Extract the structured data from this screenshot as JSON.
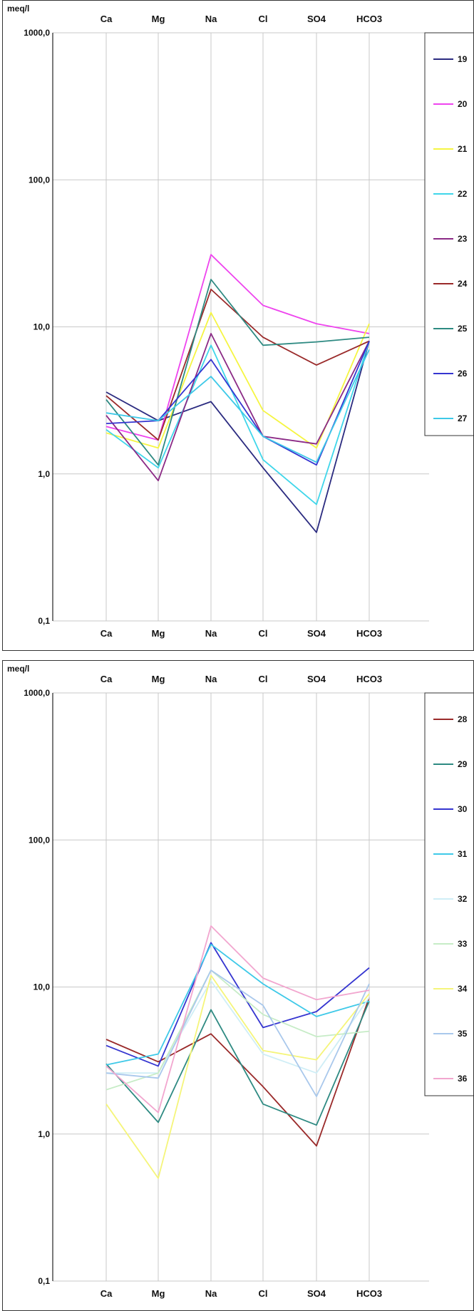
{
  "chart_data": [
    {
      "type": "line",
      "ylabel": "meq/l",
      "yscale": "log",
      "ylim": [
        0.1,
        1000
      ],
      "yticks": [
        "0,1",
        "1,0",
        "10,0",
        "100,0",
        "1000,0"
      ],
      "categories": [
        "Ca",
        "Mg",
        "Na",
        "Cl",
        "SO4",
        "HCO3"
      ],
      "grid": true,
      "legend_position": "right",
      "series": [
        {
          "name": "19",
          "color": "#2b2b80",
          "values": [
            3.6,
            2.3,
            3.1,
            1.1,
            0.4,
            8.0
          ]
        },
        {
          "name": "20",
          "color": "#ee44ee",
          "values": [
            2.1,
            1.7,
            31.0,
            14.0,
            10.5,
            9.0
          ]
        },
        {
          "name": "21",
          "color": "#f5f542",
          "values": [
            1.9,
            1.5,
            12.5,
            2.7,
            1.5,
            10.5
          ]
        },
        {
          "name": "22",
          "color": "#3fd6ea",
          "values": [
            2.0,
            1.1,
            7.5,
            1.25,
            0.62,
            8.0
          ]
        },
        {
          "name": "23",
          "color": "#8b2a86",
          "values": [
            2.5,
            0.9,
            9.0,
            1.8,
            1.6,
            8.0
          ]
        },
        {
          "name": "24",
          "color": "#9a2a2a",
          "values": [
            3.4,
            1.7,
            18.0,
            8.5,
            5.5,
            8.0
          ]
        },
        {
          "name": "25",
          "color": "#2e8a82",
          "values": [
            3.2,
            1.15,
            21.0,
            7.5,
            7.9,
            8.5
          ]
        },
        {
          "name": "26",
          "color": "#3535d0",
          "values": [
            2.2,
            2.3,
            6.0,
            1.8,
            1.15,
            8.0
          ]
        },
        {
          "name": "27",
          "color": "#3ec9e8",
          "values": [
            2.6,
            2.3,
            4.6,
            1.8,
            1.2,
            7.0
          ]
        }
      ]
    },
    {
      "type": "line",
      "ylabel": "meq/l",
      "yscale": "log",
      "ylim": [
        0.1,
        1000
      ],
      "yticks": [
        "0,1",
        "1,0",
        "10,0",
        "100,0",
        "1000,0"
      ],
      "categories": [
        "Ca",
        "Mg",
        "Na",
        "Cl",
        "SO4",
        "HCO3"
      ],
      "grid": true,
      "legend_position": "right",
      "series": [
        {
          "name": "28",
          "color": "#9a2a2a",
          "values": [
            4.4,
            3.1,
            4.8,
            2.1,
            0.83,
            8.5
          ]
        },
        {
          "name": "29",
          "color": "#2e8a82",
          "values": [
            3.0,
            1.2,
            7.0,
            1.6,
            1.15,
            8.0
          ]
        },
        {
          "name": "30",
          "color": "#3535d0",
          "values": [
            4.0,
            2.9,
            20.0,
            5.3,
            6.8,
            13.5
          ]
        },
        {
          "name": "31",
          "color": "#3ec9e8",
          "values": [
            2.95,
            3.5,
            19.5,
            10.5,
            6.3,
            8.0
          ]
        },
        {
          "name": "32",
          "color": "#cfeef6",
          "values": [
            2.6,
            2.6,
            11.0,
            3.5,
            2.6,
            8.5
          ]
        },
        {
          "name": "33",
          "color": "#c6ecc6",
          "values": [
            2.0,
            2.6,
            13.0,
            6.5,
            4.6,
            5.0
          ]
        },
        {
          "name": "34",
          "color": "#f5f57a",
          "values": [
            1.6,
            0.5,
            12.0,
            3.7,
            3.2,
            9.0
          ]
        },
        {
          "name": "35",
          "color": "#a9c8ec",
          "values": [
            2.6,
            2.4,
            13.0,
            7.5,
            1.8,
            10.5
          ]
        },
        {
          "name": "36",
          "color": "#f2a6cf",
          "values": [
            2.9,
            1.4,
            26.0,
            11.5,
            8.2,
            9.5
          ]
        }
      ]
    }
  ]
}
